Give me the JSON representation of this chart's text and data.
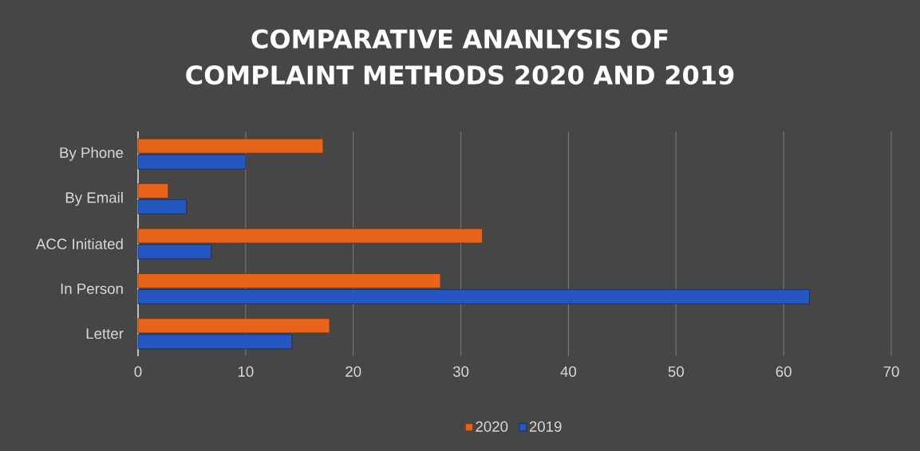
{
  "chart_data": {
    "type": "bar",
    "orientation": "horizontal",
    "title": "COMPARATIVE ANANLYSIS OF COMPLAINT METHODS 2020 AND 2019",
    "categories": [
      "By Phone",
      "By Email",
      "ACC Initiated",
      "In Person",
      "Letter"
    ],
    "series": [
      {
        "name": "2020",
        "color": "#e8641b",
        "values": [
          17.2,
          2.8,
          32.0,
          28.1,
          17.8
        ]
      },
      {
        "name": "2019",
        "color": "#2457c1",
        "values": [
          10.0,
          4.5,
          6.8,
          62.4,
          14.3
        ]
      }
    ],
    "xlim": [
      0,
      70
    ],
    "xticks": [
      0,
      10,
      20,
      30,
      40,
      50,
      60,
      70
    ],
    "grid": "x",
    "legend": "bottom"
  }
}
